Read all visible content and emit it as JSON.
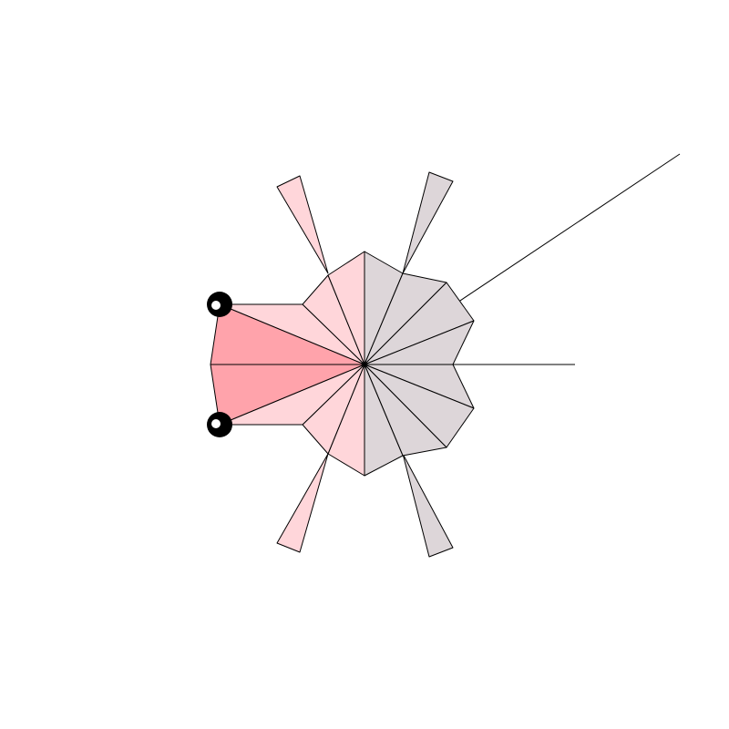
{
  "colors": {
    "background": "#ffffff",
    "body_light": "#ffd6da",
    "body_dark": "#ffa3ab",
    "body_gray": "#ddd6d9",
    "outline": "#000000",
    "eye": "#000000",
    "eye_highlight": "#ffffff"
  },
  "figure": {
    "shape": "geometric-bug",
    "eyes": 2,
    "legs": 4,
    "antenna_lines": 2
  }
}
